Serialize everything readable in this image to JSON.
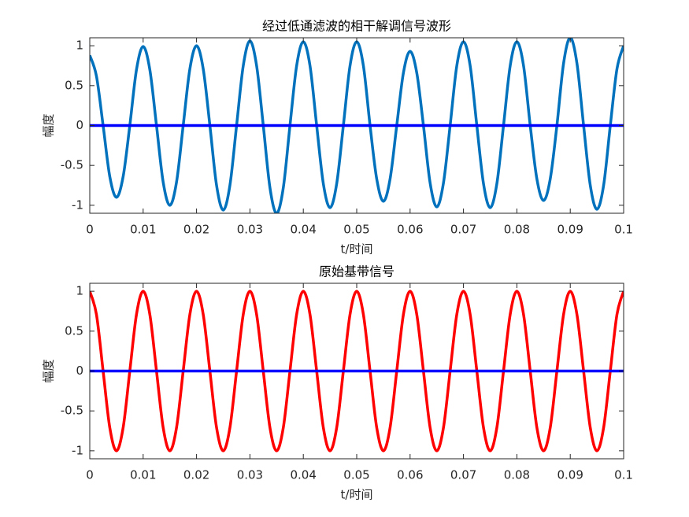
{
  "chart_data": [
    {
      "type": "line",
      "title": "经过低通滤波的相干解调信号波形",
      "xlabel": "t/时间",
      "ylabel": "幅度",
      "xlim": [
        0,
        0.1
      ],
      "ylim": [
        -1.1,
        1.1
      ],
      "xticks": [
        0,
        0.01,
        0.02,
        0.03,
        0.04,
        0.05,
        0.06,
        0.07,
        0.08,
        0.09,
        0.1
      ],
      "yticks": [
        -1,
        -0.5,
        0,
        0.5,
        1
      ],
      "x": [
        0,
        0.00125,
        0.0025,
        0.00375,
        0.005,
        0.00625,
        0.0075,
        0.00875,
        0.01,
        0.01125,
        0.0125,
        0.01375,
        0.015,
        0.01625,
        0.0175,
        0.01875,
        0.02,
        0.02125,
        0.0225,
        0.02375,
        0.025,
        0.02625,
        0.0275,
        0.02875,
        0.03,
        0.03125,
        0.0325,
        0.03375,
        0.035,
        0.03625,
        0.0375,
        0.03875,
        0.04,
        0.04125,
        0.0425,
        0.04375,
        0.045,
        0.04625,
        0.0475,
        0.04875,
        0.05,
        0.05125,
        0.0525,
        0.05375,
        0.055,
        0.05625,
        0.0575,
        0.05875,
        0.06,
        0.06125,
        0.0625,
        0.06375,
        0.065,
        0.06625,
        0.0675,
        0.06875,
        0.07,
        0.07125,
        0.0725,
        0.07375,
        0.075,
        0.07625,
        0.0775,
        0.07875,
        0.08,
        0.08125,
        0.0825,
        0.08375,
        0.085,
        0.08625,
        0.0875,
        0.08875,
        0.09,
        0.09125,
        0.0925,
        0.09375,
        0.095,
        0.09625,
        0.0975,
        0.09875,
        0.1
      ],
      "series": [
        {
          "color": "#0072bd",
          "values": [
            0.88,
            0.62,
            0,
            -0.64,
            -0.9,
            -0.64,
            0,
            0.7,
            0.99,
            0.7,
            0,
            -0.71,
            -1,
            -0.71,
            0,
            0.71,
            1,
            0.71,
            0,
            -0.75,
            -1.06,
            -0.75,
            0,
            0.75,
            1.06,
            0.75,
            0,
            -0.78,
            -1.1,
            -0.78,
            0,
            0.75,
            1.05,
            0.75,
            0,
            -0.73,
            -1.03,
            -0.73,
            0,
            0.75,
            1.05,
            0.75,
            0,
            -0.67,
            -0.95,
            -0.67,
            0,
            0.66,
            0.93,
            0.66,
            0,
            -0.72,
            -1.02,
            -0.72,
            0,
            0.75,
            1.05,
            0.75,
            0,
            -0.73,
            -1.03,
            -0.73,
            0,
            0.75,
            1.05,
            0.75,
            0,
            -0.67,
            -0.94,
            -0.67,
            0,
            0.78,
            1.1,
            0.78,
            0,
            -0.75,
            -1.05,
            -0.75,
            0,
            0.71,
            1
          ]
        },
        {
          "color": "#0000ff",
          "x": [
            0,
            0.1
          ],
          "values": [
            0,
            0
          ]
        }
      ]
    },
    {
      "type": "line",
      "title": "原始基带信号",
      "xlabel": "t/时间",
      "ylabel": "幅度",
      "xlim": [
        0,
        0.1
      ],
      "ylim": [
        -1.1,
        1.1
      ],
      "xticks": [
        0,
        0.01,
        0.02,
        0.03,
        0.04,
        0.05,
        0.06,
        0.07,
        0.08,
        0.09,
        0.1
      ],
      "yticks": [
        -1,
        -0.5,
        0,
        0.5,
        1
      ],
      "x": [
        0,
        0.00125,
        0.0025,
        0.00375,
        0.005,
        0.00625,
        0.0075,
        0.00875,
        0.01,
        0.01125,
        0.0125,
        0.01375,
        0.015,
        0.01625,
        0.0175,
        0.01875,
        0.02,
        0.02125,
        0.0225,
        0.02375,
        0.025,
        0.02625,
        0.0275,
        0.02875,
        0.03,
        0.03125,
        0.0325,
        0.03375,
        0.035,
        0.03625,
        0.0375,
        0.03875,
        0.04,
        0.04125,
        0.0425,
        0.04375,
        0.045,
        0.04625,
        0.0475,
        0.04875,
        0.05,
        0.05125,
        0.0525,
        0.05375,
        0.055,
        0.05625,
        0.0575,
        0.05875,
        0.06,
        0.06125,
        0.0625,
        0.06375,
        0.065,
        0.06625,
        0.0675,
        0.06875,
        0.07,
        0.07125,
        0.0725,
        0.07375,
        0.075,
        0.07625,
        0.0775,
        0.07875,
        0.08,
        0.08125,
        0.0825,
        0.08375,
        0.085,
        0.08625,
        0.0875,
        0.08875,
        0.09,
        0.09125,
        0.0925,
        0.09375,
        0.095,
        0.09625,
        0.0975,
        0.09875,
        0.1
      ],
      "series": [
        {
          "color": "#ff0000",
          "values": [
            1,
            0.71,
            0,
            -0.71,
            -1,
            -0.71,
            0,
            0.71,
            1,
            0.71,
            0,
            -0.71,
            -1,
            -0.71,
            0,
            0.71,
            1,
            0.71,
            0,
            -0.71,
            -1,
            -0.71,
            0,
            0.71,
            1,
            0.71,
            0,
            -0.71,
            -1,
            -0.71,
            0,
            0.71,
            1,
            0.71,
            0,
            -0.71,
            -1,
            -0.71,
            0,
            0.71,
            1,
            0.71,
            0,
            -0.71,
            -1,
            -0.71,
            0,
            0.71,
            1,
            0.71,
            0,
            -0.71,
            -1,
            -0.71,
            0,
            0.71,
            1,
            0.71,
            0,
            -0.71,
            -1,
            -0.71,
            0,
            0.71,
            1,
            0.71,
            0,
            -0.71,
            -1,
            -0.71,
            0,
            0.71,
            1,
            0.71,
            0,
            -0.71,
            -1,
            -0.71,
            0,
            0.71,
            1
          ]
        },
        {
          "color": "#0000ff",
          "x": [
            0,
            0.1
          ],
          "values": [
            0,
            0
          ]
        }
      ]
    }
  ]
}
